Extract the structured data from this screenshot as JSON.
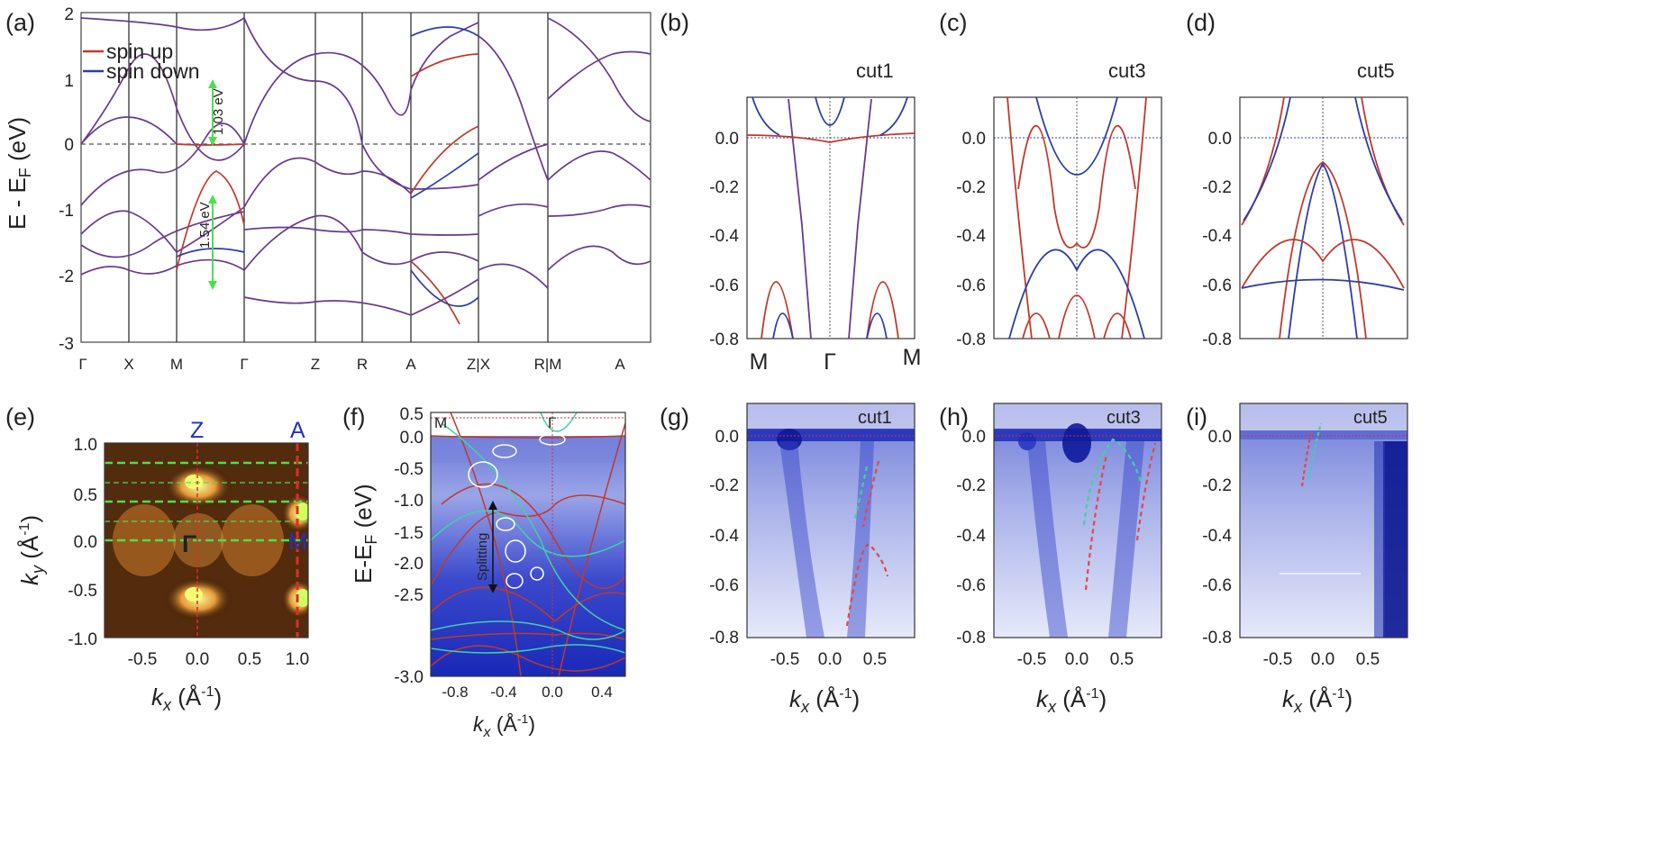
{
  "panels": {
    "a": {
      "label": "(a)",
      "ylabel": "E - E",
      "ylabel_sub": "F",
      "ylabel_unit": " (eV)",
      "yticks": [
        "2",
        "1",
        "0",
        "-1",
        "-2",
        "-3"
      ],
      "kpoints": [
        "Γ",
        "X",
        "M",
        "Γ",
        "Z",
        "R",
        "A",
        "Z|X",
        "R|M",
        "A"
      ],
      "legend": {
        "up": "spin up",
        "down": "spin down"
      },
      "annotations": {
        "gap1": "1.03 eV",
        "gap2": "1.54 eV"
      }
    },
    "b": {
      "label": "(b)",
      "cut": "cut1",
      "yticks": [
        "0.0",
        "-0.2",
        "-0.4",
        "-0.6",
        "-0.8"
      ],
      "xlabels": [
        "M",
        "Γ",
        "M"
      ]
    },
    "c": {
      "label": "(c)",
      "cut": "cut3",
      "yticks": [
        "0.0",
        "-0.2",
        "-0.4",
        "-0.6",
        "-0.8"
      ]
    },
    "d": {
      "label": "(d)",
      "cut": "cut5",
      "yticks": [
        "0.0",
        "-0.2",
        "-0.4",
        "-0.6",
        "-0.8"
      ]
    },
    "e": {
      "label": "(e)",
      "points": {
        "Z": "Z",
        "A": "A",
        "G": "Γ",
        "M": "M"
      },
      "yticks": [
        "1.0",
        "0.5",
        "0.0",
        "-0.5",
        "-1.0"
      ],
      "xticks": [
        "-0.5",
        "0.0",
        "0.5",
        "1.0"
      ],
      "ylabel": "k",
      "ylabel_sub": "y",
      "ylabel_unit": " (Å",
      "ylabel_sup": "-1",
      "ylabel_close": ")",
      "xlabel": "k",
      "xlabel_sub": "x",
      "xlabel_unit": " (Å",
      "xlabel_sup": "-1",
      "xlabel_close": ")"
    },
    "f": {
      "label": "(f)",
      "points": {
        "M": "M",
        "G": "Γ"
      },
      "yticks": [
        "0.5",
        "0.0",
        "-0.5",
        "-1.0",
        "-1.5",
        "-2.0",
        "-2.5",
        "-3.0"
      ],
      "xticks": [
        "-0.8",
        "-0.4",
        "0.0",
        "0.4"
      ],
      "ylabel": "E-E",
      "ylabel_sub": "F",
      "ylabel_unit": " (eV)",
      "splitting": "Splitting",
      "xlabel": "k",
      "xlabel_sub": "x",
      "xlabel_unit": " (Å",
      "xlabel_sup": "-1",
      "xlabel_close": ")"
    },
    "g": {
      "label": "(g)",
      "cut": "cut1",
      "yticks": [
        "0.0",
        "-0.2",
        "-0.4",
        "-0.6",
        "-0.8"
      ],
      "xticks": [
        "-0.5",
        "0.0",
        "0.5"
      ],
      "xlabel": "k",
      "xlabel_sub": "x",
      "xlabel_unit": " (Å",
      "xlabel_sup": "-1",
      "xlabel_close": ")"
    },
    "h": {
      "label": "(h)",
      "cut": "cut3",
      "yticks": [
        "0.0",
        "-0.2",
        "-0.4",
        "-0.6",
        "-0.8"
      ],
      "xticks": [
        "-0.5",
        "0.0",
        "0.5"
      ],
      "xlabel": "k",
      "xlabel_sub": "x",
      "xlabel_unit": " (Å",
      "xlabel_sup": "-1",
      "xlabel_close": ")"
    },
    "i": {
      "label": "(i)",
      "cut": "cut5",
      "yticks": [
        "0.0",
        "-0.2",
        "-0.4",
        "-0.6",
        "-0.8"
      ],
      "xticks": [
        "-0.5",
        "0.0",
        "0.5"
      ],
      "xlabel": "k",
      "xlabel_sub": "x",
      "xlabel_unit": " (Å",
      "xlabel_sup": "-1",
      "xlabel_close": ")"
    }
  },
  "colors": {
    "spin_up": "#c0392b",
    "spin_down": "#2c3ea8",
    "overlap": "#6a3a8e",
    "arpes_blue": "#2130c8",
    "guide_green": "#4de04d",
    "guide_cyan": "#3fd1a8"
  }
}
